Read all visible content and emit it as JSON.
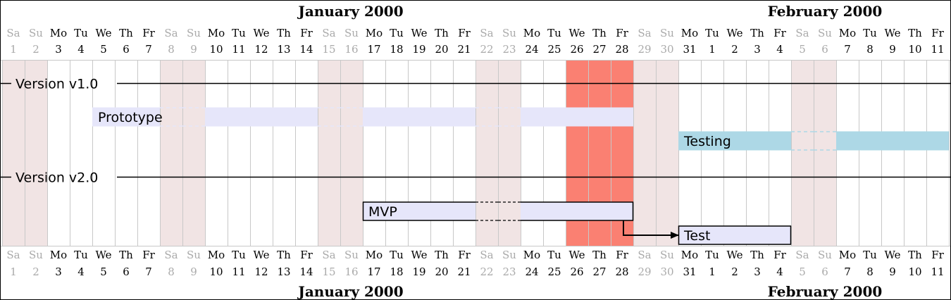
{
  "chart_data": {
    "type": "gantt",
    "months": [
      {
        "label": "January 2000",
        "start_day_index": 0,
        "days": 31
      },
      {
        "label": "February 2000",
        "start_day_index": 31,
        "days": 11
      }
    ],
    "days": [
      {
        "name": "Sa",
        "num": "1",
        "weekend": true
      },
      {
        "name": "Su",
        "num": "2",
        "weekend": true
      },
      {
        "name": "Mo",
        "num": "3",
        "weekend": false
      },
      {
        "name": "Tu",
        "num": "4",
        "weekend": false
      },
      {
        "name": "We",
        "num": "5",
        "weekend": false
      },
      {
        "name": "Th",
        "num": "6",
        "weekend": false
      },
      {
        "name": "Fr",
        "num": "7",
        "weekend": false
      },
      {
        "name": "Sa",
        "num": "8",
        "weekend": true
      },
      {
        "name": "Su",
        "num": "9",
        "weekend": true
      },
      {
        "name": "Mo",
        "num": "10",
        "weekend": false
      },
      {
        "name": "Tu",
        "num": "11",
        "weekend": false
      },
      {
        "name": "We",
        "num": "12",
        "weekend": false
      },
      {
        "name": "Th",
        "num": "13",
        "weekend": false
      },
      {
        "name": "Fr",
        "num": "14",
        "weekend": false
      },
      {
        "name": "Sa",
        "num": "15",
        "weekend": true
      },
      {
        "name": "Su",
        "num": "16",
        "weekend": true
      },
      {
        "name": "Mo",
        "num": "17",
        "weekend": false
      },
      {
        "name": "Tu",
        "num": "18",
        "weekend": false
      },
      {
        "name": "We",
        "num": "19",
        "weekend": false
      },
      {
        "name": "Th",
        "num": "20",
        "weekend": false
      },
      {
        "name": "Fr",
        "num": "21",
        "weekend": false
      },
      {
        "name": "Sa",
        "num": "22",
        "weekend": true
      },
      {
        "name": "Su",
        "num": "23",
        "weekend": true
      },
      {
        "name": "Mo",
        "num": "24",
        "weekend": false
      },
      {
        "name": "Tu",
        "num": "25",
        "weekend": false
      },
      {
        "name": "We",
        "num": "26",
        "weekend": false
      },
      {
        "name": "Th",
        "num": "27",
        "weekend": false
      },
      {
        "name": "Fr",
        "num": "28",
        "weekend": false
      },
      {
        "name": "Sa",
        "num": "29",
        "weekend": true
      },
      {
        "name": "Su",
        "num": "30",
        "weekend": true
      },
      {
        "name": "Mo",
        "num": "31",
        "weekend": false
      },
      {
        "name": "Tu",
        "num": "1",
        "weekend": false
      },
      {
        "name": "We",
        "num": "2",
        "weekend": false
      },
      {
        "name": "Th",
        "num": "3",
        "weekend": false
      },
      {
        "name": "Fr",
        "num": "4",
        "weekend": false
      },
      {
        "name": "Sa",
        "num": "5",
        "weekend": true
      },
      {
        "name": "Su",
        "num": "6",
        "weekend": true
      },
      {
        "name": "Mo",
        "num": "7",
        "weekend": false
      },
      {
        "name": "Tu",
        "num": "8",
        "weekend": false
      },
      {
        "name": "We",
        "num": "9",
        "weekend": false
      },
      {
        "name": "Th",
        "num": "10",
        "weekend": false
      },
      {
        "name": "Fr",
        "num": "11",
        "weekend": false
      }
    ],
    "highlight": {
      "start": "2000-01-26",
      "end": "2000-01-28",
      "color": "#FA8072"
    },
    "milestones": [
      {
        "label": "Version v1.0",
        "row": 0
      },
      {
        "label": "Version v2.0",
        "row": 4
      }
    ],
    "tasks": [
      {
        "label": "Prototype",
        "start": "2000-01-05",
        "end": "2000-01-28",
        "row": 1,
        "color": "#E6E6FA",
        "style": "plain"
      },
      {
        "label": "Testing",
        "start": "2000-01-31",
        "end": "2000-02-11",
        "row": 2,
        "color": "#ADD8E6",
        "style": "plain"
      },
      {
        "label": "MVP",
        "start": "2000-01-17",
        "end": "2000-01-28",
        "row": 5,
        "color": "#E6E6FA",
        "style": "outlined"
      },
      {
        "label": "Test",
        "start": "2000-01-31",
        "end": "2000-02-04",
        "row": 6,
        "color": "#E6E6FA",
        "style": "outlined"
      }
    ],
    "dependencies": [
      {
        "from": "MVP",
        "to": "Test"
      }
    ],
    "colors": {
      "weekend_shade": "#F1E4E4",
      "grid_line": "#C8C8C8",
      "weekend_text": "#AAAAAA",
      "weekday_text": "#000000"
    }
  }
}
